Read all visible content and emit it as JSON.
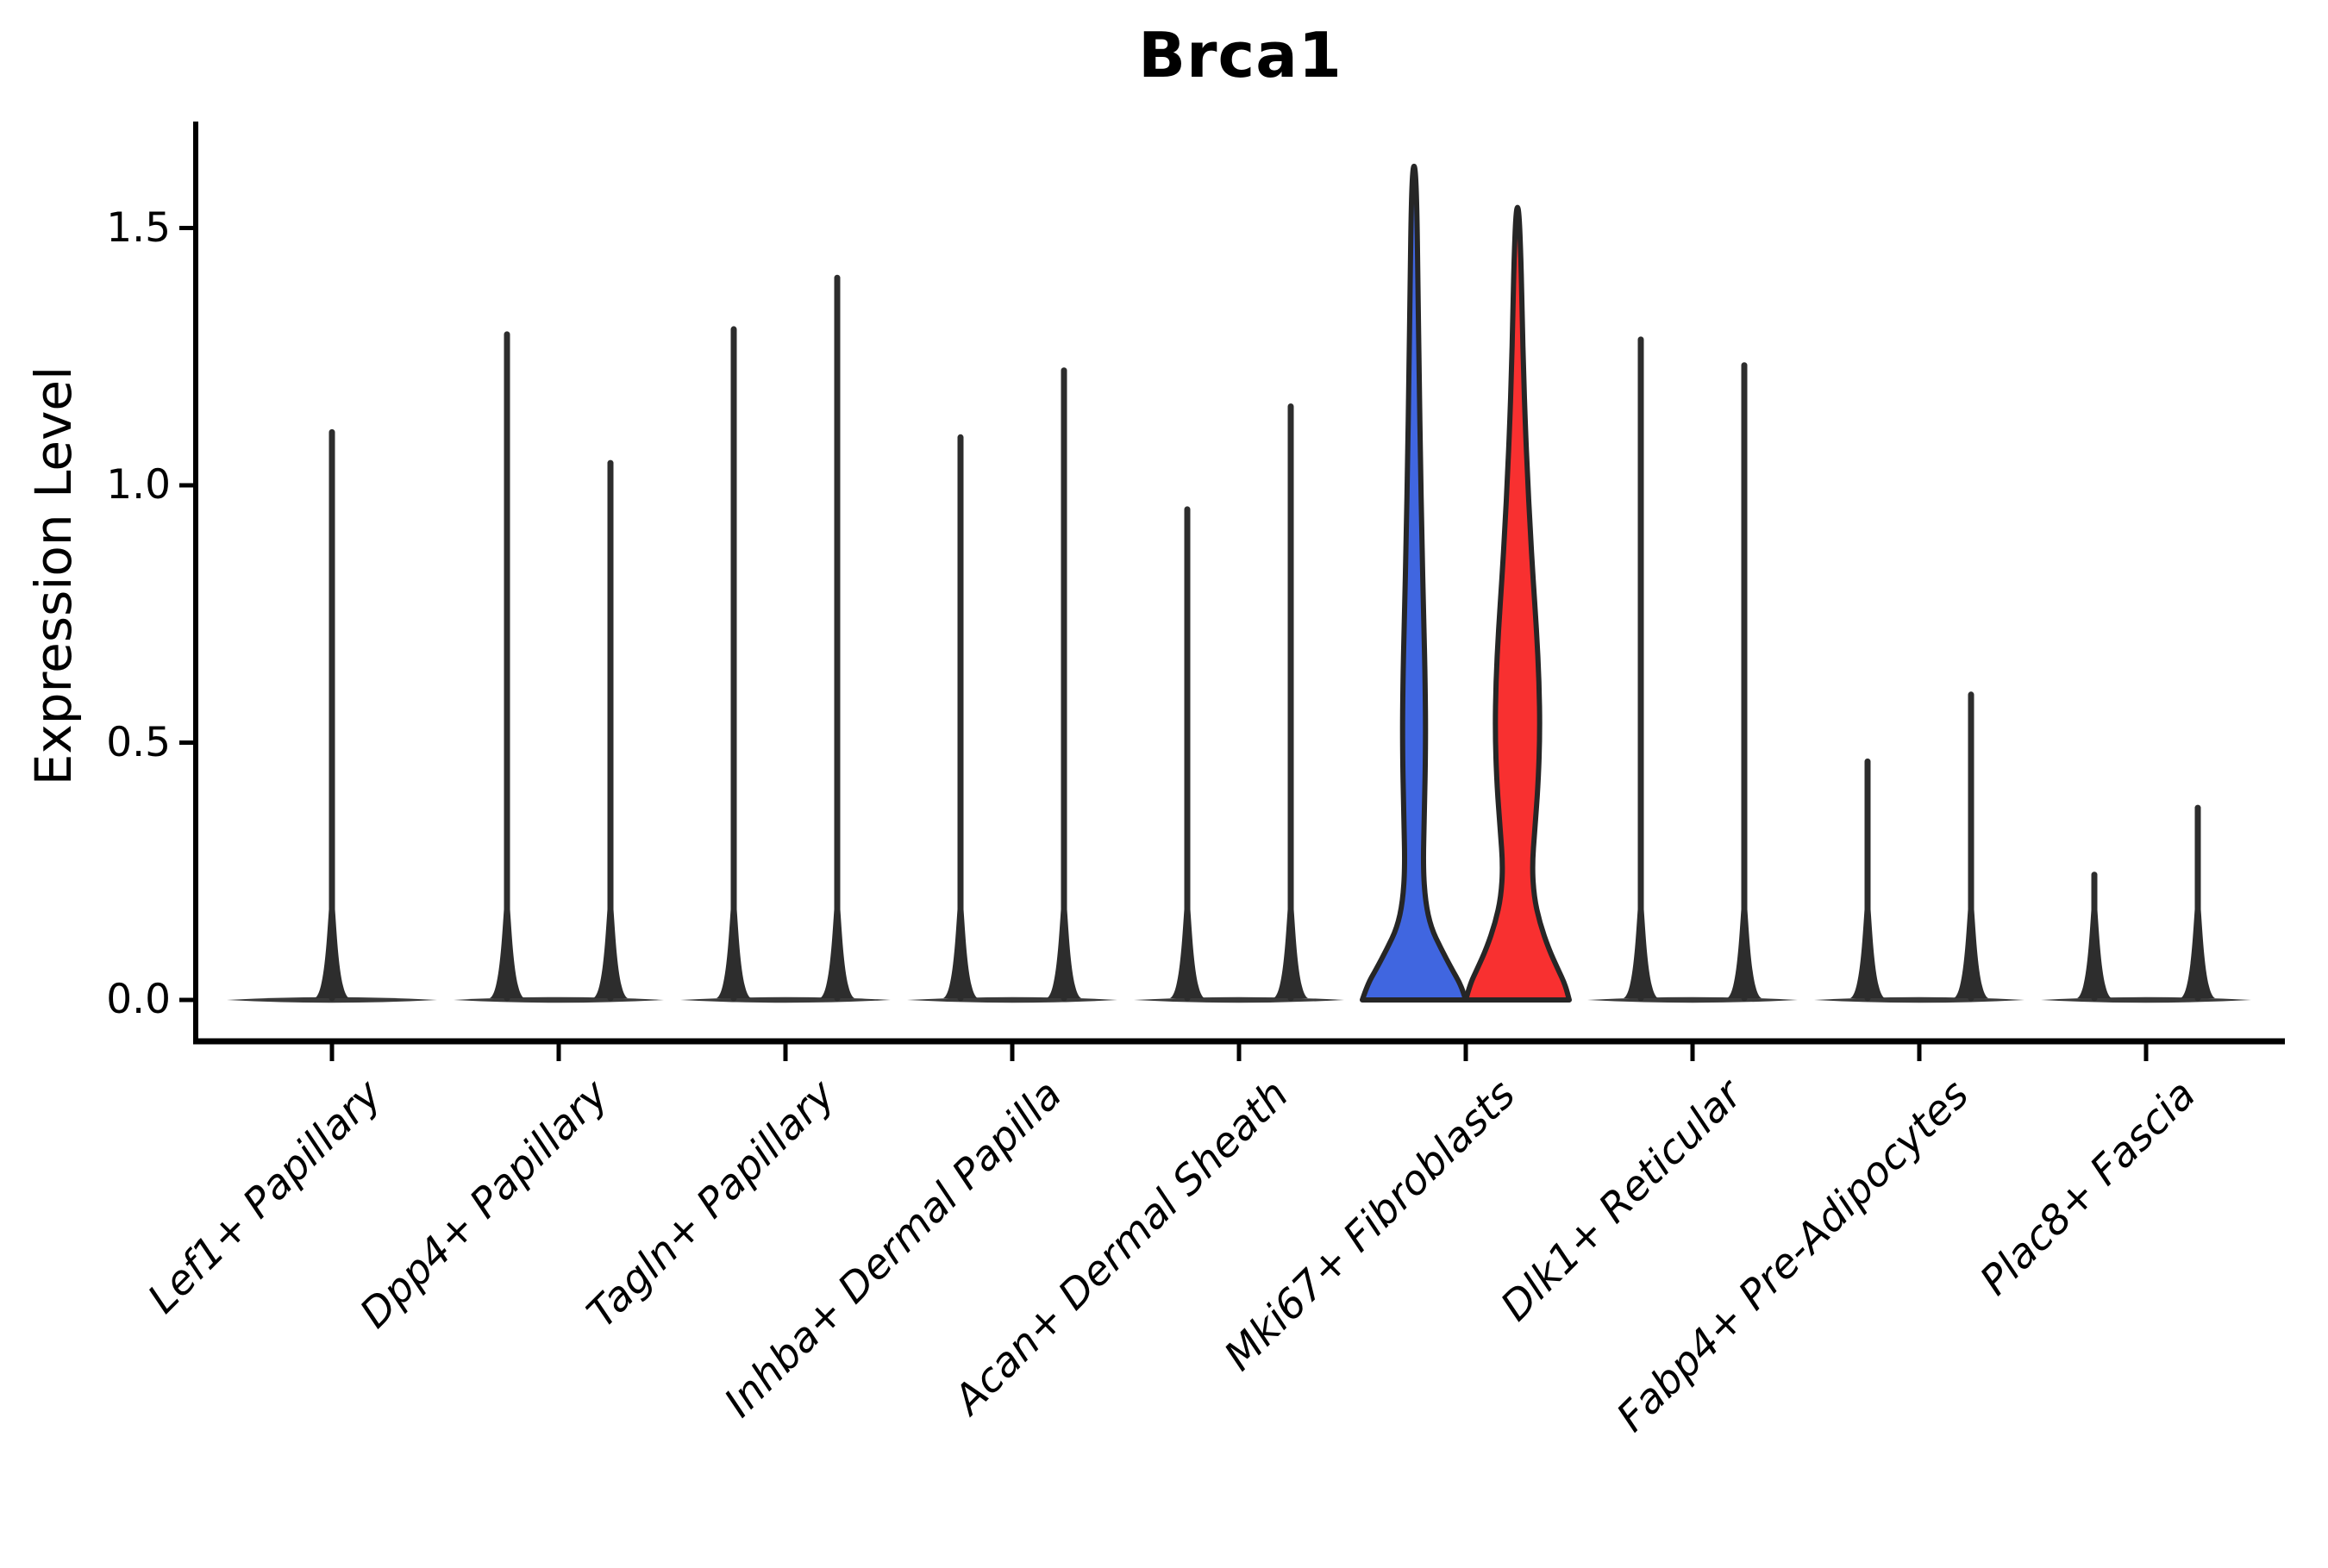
{
  "title": "Brca1",
  "y_axis": {
    "label": "Expression Level",
    "tick_labels": [
      "0.0",
      "0.5",
      "1.0",
      "1.5"
    ],
    "tick_values": [
      0.0,
      0.5,
      1.0,
      1.5
    ]
  },
  "colors": {
    "blue_fill": "#4066E0",
    "red_fill": "#F83030",
    "violin_outline": "#262626",
    "spike_line": "#2d2d2d",
    "flat_base": "#3a3a3a",
    "axis": "#000000"
  },
  "chart_data": {
    "type": "violin",
    "title": "Brca1",
    "xlabel": "",
    "ylabel": "Expression Level",
    "ylim": [
      0,
      1.7
    ],
    "grid": false,
    "legend": "none",
    "categories": [
      "Lef1+ Papillary",
      "Dpp4+ Papillary",
      "Tagln+ Papillary",
      "Inhba+ Dermal Papilla",
      "Acan+ Dermal Sheath",
      "Mki67+ Fibroblasts",
      "Dlk1+ Reticular",
      "Fabp4+ Pre-Adipocytes",
      "Plac8+ Fascia"
    ],
    "groups": [
      {
        "category": "Lef1+ Papillary",
        "violins": [
          {
            "side": "single",
            "filled": false,
            "max_expression": 1.11,
            "bulk_at_zero": true
          }
        ]
      },
      {
        "category": "Dpp4+ Papillary",
        "violins": [
          {
            "side": "left",
            "filled": false,
            "max_expression": 1.3,
            "bulk_at_zero": true
          },
          {
            "side": "right",
            "filled": false,
            "max_expression": 1.05,
            "bulk_at_zero": true
          }
        ]
      },
      {
        "category": "Tagln+ Papillary",
        "violins": [
          {
            "side": "left",
            "filled": false,
            "max_expression": 1.31,
            "bulk_at_zero": true
          },
          {
            "side": "right",
            "filled": false,
            "max_expression": 1.41,
            "bulk_at_zero": true
          }
        ]
      },
      {
        "category": "Inhba+ Dermal Papilla",
        "violins": [
          {
            "side": "left",
            "filled": false,
            "max_expression": 1.1,
            "bulk_at_zero": true
          },
          {
            "side": "right",
            "filled": false,
            "max_expression": 1.23,
            "bulk_at_zero": true
          }
        ]
      },
      {
        "category": "Acan+ Dermal Sheath",
        "violins": [
          {
            "side": "left",
            "filled": false,
            "max_expression": 0.96,
            "bulk_at_zero": true
          },
          {
            "side": "right",
            "filled": false,
            "max_expression": 1.16,
            "bulk_at_zero": true
          }
        ]
      },
      {
        "category": "Mki67+ Fibroblasts",
        "violins": [
          {
            "side": "left",
            "filled": true,
            "color": "#4066E0",
            "max_expression": 1.62,
            "profile": [
              [
                0,
                1.0
              ],
              [
                0.03,
                0.9
              ],
              [
                0.06,
                0.73
              ],
              [
                0.1,
                0.52
              ],
              [
                0.14,
                0.33
              ],
              [
                0.19,
                0.22
              ],
              [
                0.26,
                0.175
              ],
              [
                0.36,
                0.2
              ],
              [
                0.5,
                0.225
              ],
              [
                0.62,
                0.215
              ],
              [
                0.75,
                0.185
              ],
              [
                0.9,
                0.15
              ],
              [
                1.05,
                0.125
              ],
              [
                1.2,
                0.1
              ],
              [
                1.4,
                0.075
              ],
              [
                1.55,
                0.053
              ],
              [
                1.62,
                0.022
              ]
            ]
          },
          {
            "side": "right",
            "filled": true,
            "color": "#F83030",
            "max_expression": 1.54,
            "profile": [
              [
                0,
                1.0
              ],
              [
                0.03,
                0.92
              ],
              [
                0.06,
                0.78
              ],
              [
                0.1,
                0.6
              ],
              [
                0.15,
                0.43
              ],
              [
                0.2,
                0.32
              ],
              [
                0.26,
                0.283
              ],
              [
                0.33,
                0.333
              ],
              [
                0.42,
                0.4
              ],
              [
                0.52,
                0.433
              ],
              [
                0.62,
                0.417
              ],
              [
                0.72,
                0.367
              ],
              [
                0.82,
                0.3
              ],
              [
                0.92,
                0.242
              ],
              [
                1.02,
                0.192
              ],
              [
                1.12,
                0.15
              ],
              [
                1.22,
                0.117
              ],
              [
                1.32,
                0.092
              ],
              [
                1.44,
                0.067
              ],
              [
                1.54,
                0.026
              ]
            ]
          }
        ]
      },
      {
        "category": "Dlk1+ Reticular",
        "violins": [
          {
            "side": "left",
            "filled": false,
            "max_expression": 1.29,
            "bulk_at_zero": true
          },
          {
            "side": "right",
            "filled": false,
            "max_expression": 1.24,
            "bulk_at_zero": true
          }
        ]
      },
      {
        "category": "Fabp4+ Pre-Adipocytes",
        "violins": [
          {
            "side": "left",
            "filled": false,
            "max_expression": 0.47,
            "bulk_at_zero": true
          },
          {
            "side": "right",
            "filled": false,
            "max_expression": 0.6,
            "bulk_at_zero": true
          }
        ]
      },
      {
        "category": "Plac8+ Fascia",
        "violins": [
          {
            "side": "left",
            "filled": false,
            "max_expression": 0.25,
            "bulk_at_zero": true
          },
          {
            "side": "right",
            "filled": false,
            "max_expression": 0.38,
            "bulk_at_zero": true
          }
        ]
      }
    ]
  }
}
